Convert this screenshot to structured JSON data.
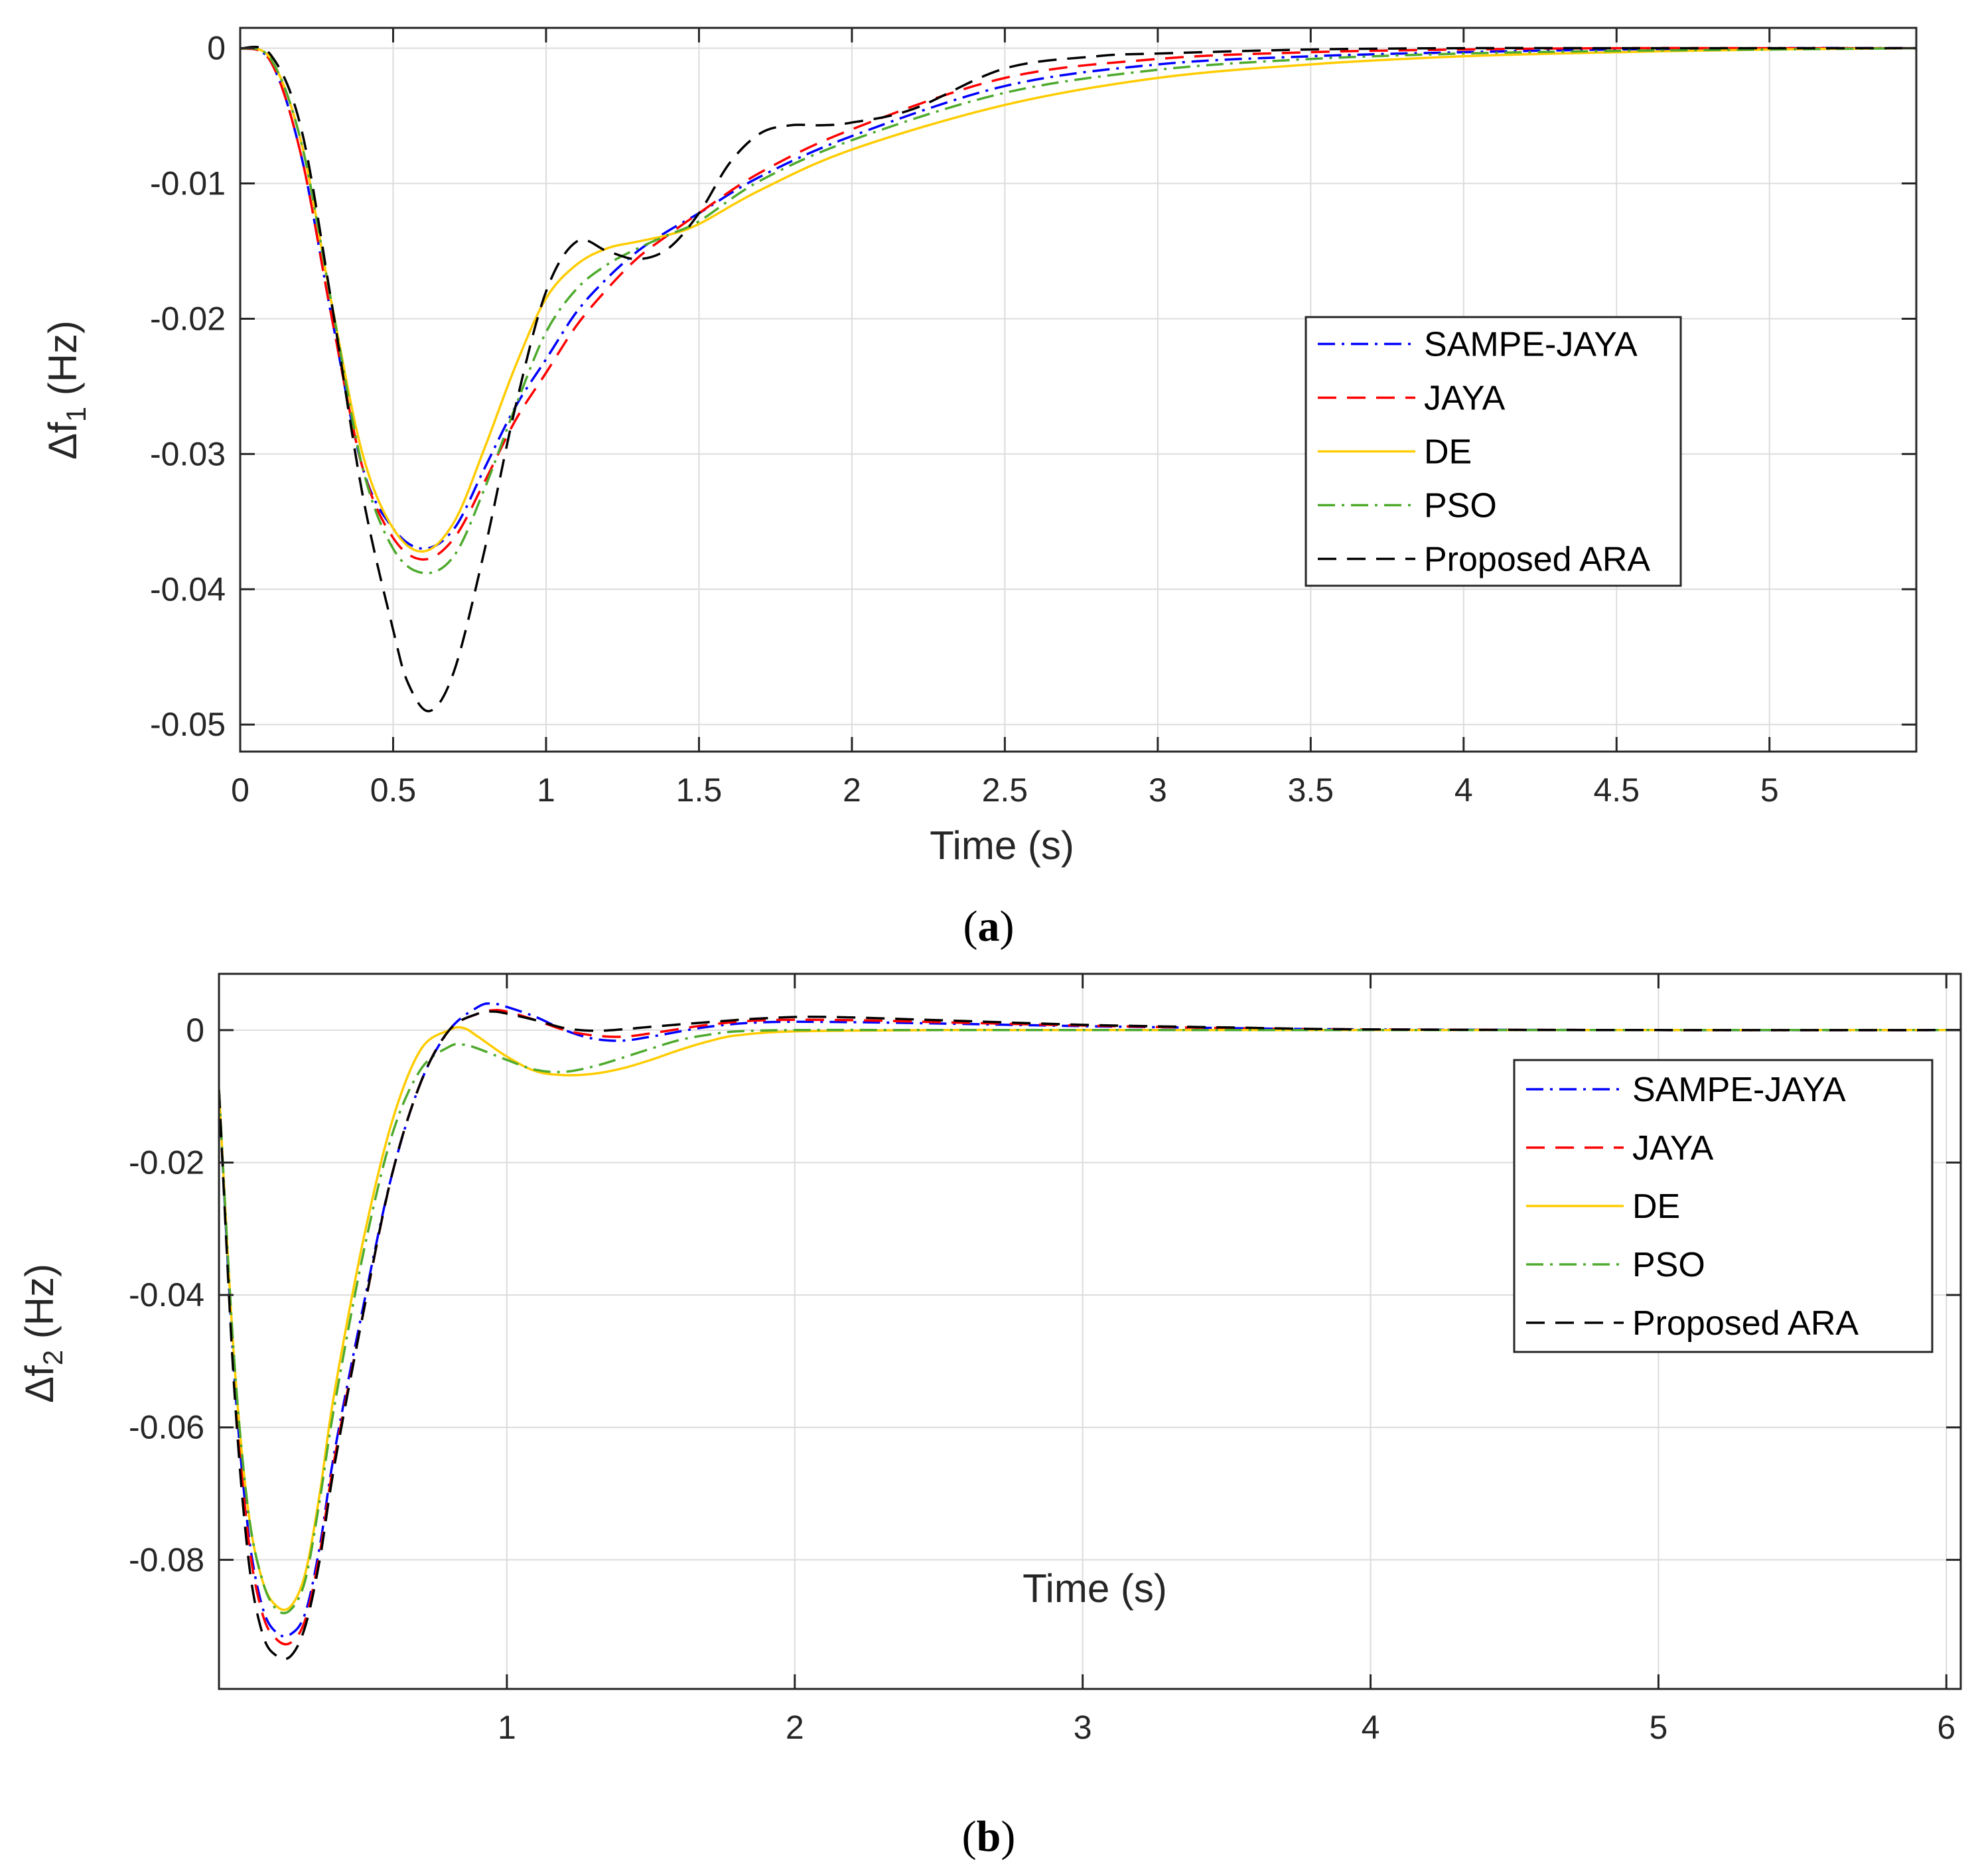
{
  "colors": {
    "SAMPE-JAYA": "#0000ff",
    "JAYA": "#ff0000",
    "DE": "#ffcc00",
    "PSO": "#4daa2c",
    "Proposed ARA": "#000000"
  },
  "chart_data": [
    {
      "type": "line",
      "panel": "a",
      "caption": "a",
      "xlabel": "Time (s)",
      "ylabel_prefix": "Δf",
      "ylabel_sub": "1",
      "ylabel_suffix": " (Hz)",
      "xlim": [
        0,
        5.48
      ],
      "ylim": [
        -0.052,
        0.0015
      ],
      "xticks": [
        0,
        0.5,
        1,
        1.5,
        2,
        2.5,
        3,
        3.5,
        4,
        4.5,
        5
      ],
      "xtick_labels": [
        "0",
        "0.5",
        "1",
        "1.5",
        "2",
        "2.5",
        "3",
        "3.5",
        "4",
        "4.5",
        "5"
      ],
      "yticks": [
        0,
        -0.01,
        -0.02,
        -0.03,
        -0.04,
        -0.05
      ],
      "ytick_labels": [
        "0",
        "-0.01",
        "-0.02",
        "-0.03",
        "-0.04",
        "-0.05"
      ],
      "grid": true,
      "legend_position": "middle-right",
      "series": [
        {
          "name": "SAMPE-JAYA",
          "dash": "dashdot",
          "x": [
            0,
            0.1,
            0.2,
            0.3,
            0.4,
            0.5,
            0.6,
            0.7,
            0.8,
            0.9,
            1.0,
            1.1,
            1.2,
            1.3,
            1.4,
            1.5,
            1.7,
            2.0,
            2.5,
            3.0,
            3.5,
            4.0,
            4.5,
            5.0,
            5.48
          ],
          "y": [
            0,
            -0.001,
            -0.008,
            -0.02,
            -0.031,
            -0.0355,
            -0.037,
            -0.0355,
            -0.031,
            -0.0265,
            -0.023,
            -0.0195,
            -0.017,
            -0.015,
            -0.0135,
            -0.0122,
            -0.0095,
            -0.0065,
            -0.0028,
            -0.0012,
            -0.0006,
            -0.0003,
            -0.0001,
            0,
            0
          ]
        },
        {
          "name": "JAYA",
          "dash": "dash",
          "x": [
            0,
            0.1,
            0.2,
            0.3,
            0.4,
            0.5,
            0.6,
            0.7,
            0.8,
            0.9,
            1.0,
            1.1,
            1.2,
            1.3,
            1.4,
            1.5,
            1.7,
            2.0,
            2.5,
            3.0,
            3.5,
            4.0,
            4.5,
            5.0,
            5.48
          ],
          "y": [
            0,
            -0.001,
            -0.008,
            -0.02,
            -0.031,
            -0.0362,
            -0.0378,
            -0.0362,
            -0.032,
            -0.0275,
            -0.024,
            -0.0205,
            -0.0178,
            -0.0155,
            -0.0138,
            -0.0122,
            -0.0092,
            -0.006,
            -0.0022,
            -0.0008,
            -0.0003,
            -0.0001,
            0,
            0,
            0
          ]
        },
        {
          "name": "DE",
          "dash": "solid",
          "x": [
            0,
            0.1,
            0.2,
            0.3,
            0.4,
            0.5,
            0.6,
            0.7,
            0.8,
            0.9,
            1.0,
            1.1,
            1.2,
            1.3,
            1.4,
            1.5,
            1.7,
            2.0,
            2.5,
            3.0,
            3.5,
            4.0,
            4.5,
            5.0,
            5.48
          ],
          "y": [
            0,
            -0.0008,
            -0.007,
            -0.019,
            -0.03,
            -0.0355,
            -0.0372,
            -0.035,
            -0.0295,
            -0.0235,
            -0.0185,
            -0.016,
            -0.0148,
            -0.0143,
            -0.0138,
            -0.013,
            -0.0105,
            -0.0075,
            -0.0042,
            -0.0022,
            -0.0012,
            -0.0006,
            -0.0003,
            -0.0001,
            0
          ]
        },
        {
          "name": "PSO",
          "dash": "dashdot",
          "x": [
            0,
            0.1,
            0.2,
            0.3,
            0.4,
            0.5,
            0.6,
            0.7,
            0.8,
            0.9,
            1.0,
            1.1,
            1.2,
            1.3,
            1.4,
            1.5,
            1.7,
            2.0,
            2.5,
            3.0,
            3.5,
            4.0,
            4.5,
            5.0,
            5.48
          ],
          "y": [
            0,
            -0.0008,
            -0.007,
            -0.019,
            -0.031,
            -0.037,
            -0.0388,
            -0.0375,
            -0.0325,
            -0.0265,
            -0.021,
            -0.0178,
            -0.016,
            -0.0148,
            -0.0138,
            -0.0128,
            -0.0098,
            -0.0068,
            -0.0033,
            -0.0016,
            -0.0008,
            -0.0004,
            -0.0002,
            -0.0001,
            0
          ]
        },
        {
          "name": "Proposed ARA",
          "dash": "dash",
          "x": [
            0,
            0.1,
            0.2,
            0.3,
            0.4,
            0.5,
            0.55,
            0.62,
            0.7,
            0.8,
            0.9,
            1.0,
            1.1,
            1.2,
            1.3,
            1.4,
            1.5,
            1.6,
            1.7,
            1.8,
            1.9,
            2.0,
            2.2,
            2.5,
            2.8,
            3.0,
            3.5,
            4.0,
            4.5,
            5.0,
            5.48
          ],
          "y": [
            0,
            -0.0005,
            -0.006,
            -0.019,
            -0.033,
            -0.043,
            -0.047,
            -0.049,
            -0.046,
            -0.037,
            -0.0265,
            -0.018,
            -0.0143,
            -0.015,
            -0.0156,
            -0.0148,
            -0.0122,
            -0.0085,
            -0.0063,
            -0.0057,
            -0.0057,
            -0.0055,
            -0.0045,
            -0.0015,
            -0.0006,
            -0.0004,
            -0.0001,
            0,
            0,
            0,
            0
          ]
        }
      ]
    },
    {
      "type": "line",
      "panel": "b",
      "caption": "b",
      "xlabel": "Time (s)",
      "ylabel_prefix": "Δf",
      "ylabel_sub": "2",
      "ylabel_suffix": " (Hz)",
      "xlim": [
        0,
        6.05
      ],
      "ylim": [
        -0.0995,
        0.0085
      ],
      "xticks": [
        1,
        2,
        3,
        4,
        5,
        6
      ],
      "xtick_labels": [
        "1",
        "2",
        "3",
        "4",
        "5",
        "6"
      ],
      "yticks": [
        0,
        -0.02,
        -0.04,
        -0.06,
        -0.08
      ],
      "ytick_labels": [
        "0",
        "-0.02",
        "-0.04",
        "-0.06",
        "-0.08"
      ],
      "grid": true,
      "legend_position": "upper-right",
      "series": [
        {
          "name": "SAMPE-JAYA",
          "dash": "dashdot",
          "x": [
            0,
            0.05,
            0.1,
            0.15,
            0.2,
            0.25,
            0.3,
            0.35,
            0.4,
            0.5,
            0.6,
            0.7,
            0.8,
            0.9,
            0.95,
            1.0,
            1.1,
            1.2,
            1.3,
            1.4,
            1.5,
            1.7,
            1.9,
            2.2,
            2.5,
            3.0,
            3.5,
            4.0,
            5.0,
            6.05
          ],
          "y": [
            -0.009,
            -0.05,
            -0.075,
            -0.087,
            -0.091,
            -0.0912,
            -0.088,
            -0.078,
            -0.064,
            -0.042,
            -0.022,
            -0.008,
            0,
            0.0035,
            0.004,
            0.0035,
            0.002,
            0,
            -0.0013,
            -0.0016,
            -0.001,
            0.0005,
            0.0012,
            0.0012,
            0.001,
            0.0006,
            0.0003,
            0.0001,
            0,
            0
          ]
        },
        {
          "name": "JAYA",
          "dash": "dash",
          "x": [
            0,
            0.05,
            0.1,
            0.15,
            0.2,
            0.25,
            0.3,
            0.35,
            0.4,
            0.5,
            0.6,
            0.7,
            0.8,
            0.9,
            0.95,
            1.0,
            1.1,
            1.2,
            1.3,
            1.4,
            1.5,
            1.7,
            1.9,
            2.2,
            2.5,
            3.0,
            3.5,
            4.0,
            5.0,
            6.05
          ],
          "y": [
            -0.009,
            -0.05,
            -0.076,
            -0.088,
            -0.092,
            -0.0925,
            -0.089,
            -0.079,
            -0.065,
            -0.043,
            -0.022,
            -0.008,
            0,
            0.0025,
            0.003,
            0.0028,
            0.0015,
            0,
            -0.0008,
            -0.001,
            -0.0005,
            0.0008,
            0.0015,
            0.0015,
            0.0012,
            0.0007,
            0.0003,
            0.0001,
            0,
            0
          ]
        },
        {
          "name": "DE",
          "dash": "solid",
          "x": [
            0,
            0.05,
            0.1,
            0.15,
            0.2,
            0.25,
            0.3,
            0.35,
            0.4,
            0.5,
            0.6,
            0.7,
            0.8,
            0.85,
            0.9,
            1.0,
            1.1,
            1.2,
            1.3,
            1.4,
            1.5,
            1.6,
            1.7,
            1.8,
            2.0,
            2.5,
            3.0,
            4.0,
            5.0,
            6.05
          ],
          "y": [
            -0.009,
            -0.048,
            -0.072,
            -0.083,
            -0.087,
            -0.087,
            -0.082,
            -0.07,
            -0.055,
            -0.032,
            -0.014,
            -0.003,
            0,
            0.0003,
            -0.001,
            -0.004,
            -0.0062,
            -0.0068,
            -0.0066,
            -0.0058,
            -0.0045,
            -0.003,
            -0.0017,
            -0.0008,
            -0.0002,
            0,
            0,
            0,
            0,
            0
          ]
        },
        {
          "name": "PSO",
          "dash": "dashdot",
          "x": [
            0,
            0.05,
            0.1,
            0.15,
            0.2,
            0.25,
            0.3,
            0.35,
            0.4,
            0.5,
            0.6,
            0.7,
            0.8,
            0.85,
            0.9,
            1.0,
            1.1,
            1.2,
            1.3,
            1.4,
            1.5,
            1.6,
            1.7,
            1.8,
            2.0,
            2.5,
            3.0,
            4.0,
            5.0,
            6.05
          ],
          "y": [
            -0.009,
            -0.048,
            -0.072,
            -0.083,
            -0.0875,
            -0.0875,
            -0.083,
            -0.071,
            -0.057,
            -0.034,
            -0.016,
            -0.006,
            -0.0025,
            -0.0022,
            -0.0028,
            -0.0045,
            -0.006,
            -0.0063,
            -0.0055,
            -0.0042,
            -0.0028,
            -0.0015,
            -0.0007,
            -0.0002,
            0,
            0,
            0,
            0,
            0,
            0
          ]
        },
        {
          "name": "Proposed ARA",
          "dash": "dash",
          "x": [
            0,
            0.05,
            0.1,
            0.15,
            0.2,
            0.25,
            0.3,
            0.35,
            0.4,
            0.5,
            0.6,
            0.7,
            0.8,
            0.9,
            0.95,
            1.0,
            1.1,
            1.2,
            1.3,
            1.4,
            1.5,
            1.7,
            1.9,
            2.1,
            2.5,
            3.0,
            3.5,
            4.0,
            5.0,
            6.05
          ],
          "y": [
            -0.009,
            -0.052,
            -0.079,
            -0.091,
            -0.0945,
            -0.0945,
            -0.09,
            -0.08,
            -0.066,
            -0.043,
            -0.022,
            -0.008,
            0,
            0.0025,
            0.0028,
            0.0025,
            0.0015,
            0.0003,
            -0.0001,
            0.0001,
            0.0005,
            0.0012,
            0.0018,
            0.002,
            0.0015,
            0.0008,
            0.0004,
            0.0001,
            0,
            0
          ]
        }
      ]
    }
  ],
  "legend_labels": [
    "SAMPE-JAYA",
    "JAYA",
    "DE",
    "PSO",
    "Proposed ARA"
  ]
}
